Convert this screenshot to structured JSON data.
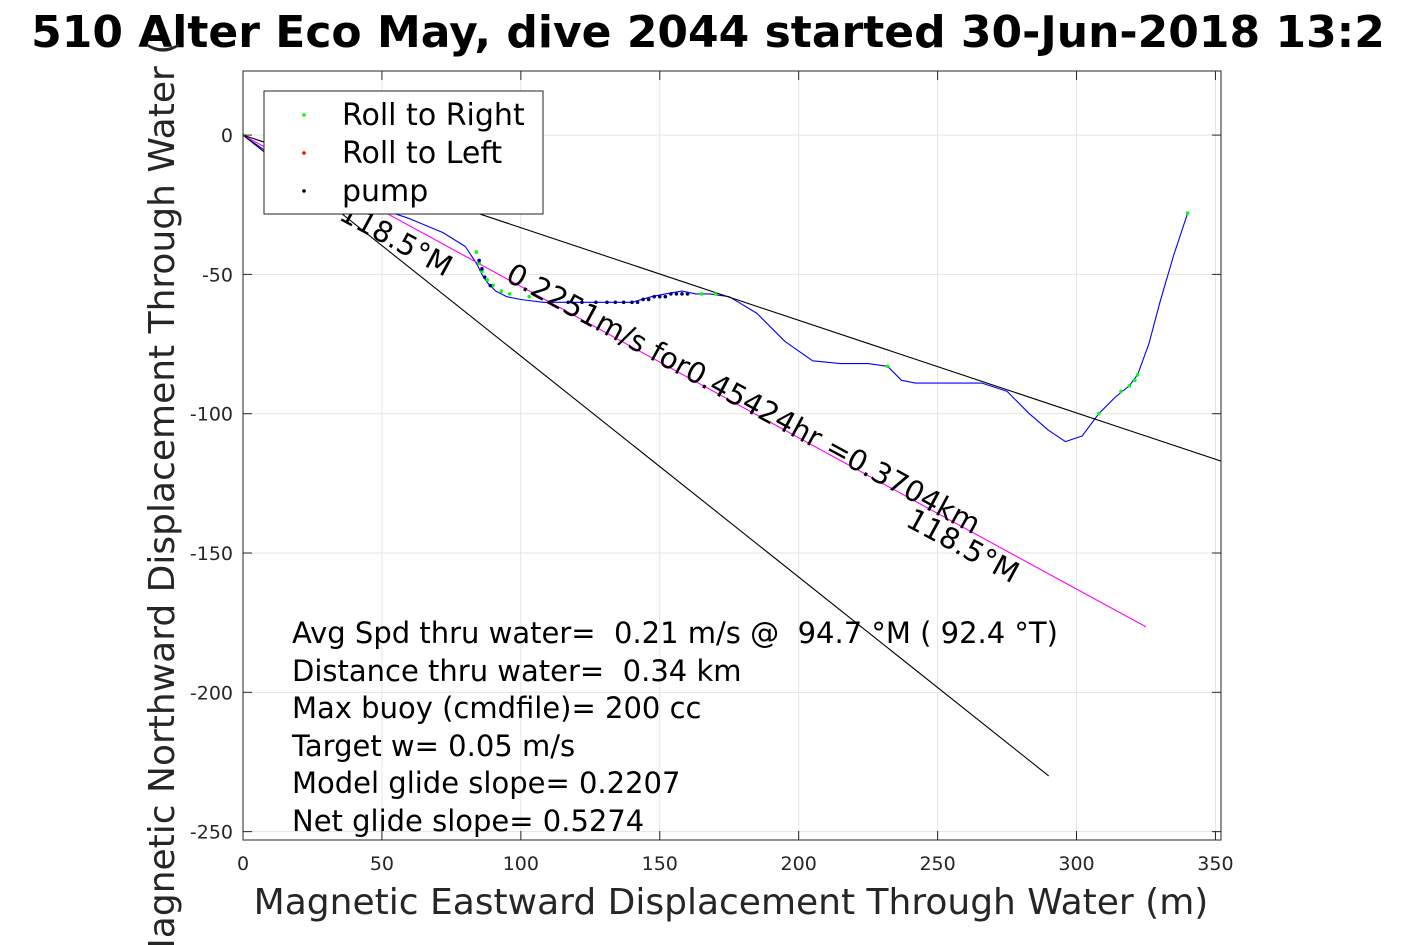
{
  "chart_data": {
    "type": "line",
    "title": "510 Alter Eco May, dive 2044 started 30-Jun-2018 13:2",
    "xlabel": "Magnetic Eastward Displacement Through Water (m)",
    "ylabel": "Magnetic Northward Displacement Through Water (",
    "xlim": [
      0,
      352
    ],
    "ylim": [
      -253,
      23
    ],
    "xticks": [
      0,
      50,
      100,
      150,
      200,
      250,
      300,
      350
    ],
    "yticks": [
      0,
      -50,
      -100,
      -150,
      -200,
      -250
    ],
    "xtick_labels": [
      "0",
      "50",
      "100",
      "150",
      "200",
      "250",
      "300",
      "350"
    ],
    "ytick_labels": [
      "0",
      "-50",
      "-100",
      "-150",
      "-200",
      "-250"
    ],
    "grid": true,
    "legend_position": "top-left",
    "legend": [
      {
        "label": "Roll to Right",
        "color": "#00ff00"
      },
      {
        "label": "Roll to Left",
        "color": "#ff0000"
      },
      {
        "label": "pump",
        "color": "#000000"
      }
    ],
    "series": [
      {
        "name": "track",
        "color": "#0000ff",
        "x": [
          0,
          10,
          20,
          30,
          45,
          60,
          72,
          80,
          84,
          86,
          88,
          91,
          95,
          100,
          108,
          117,
          125,
          132,
          140,
          147,
          152,
          158,
          163,
          168,
          175,
          185,
          195,
          205,
          215,
          225,
          232,
          237,
          242,
          250,
          258,
          266,
          275,
          283,
          290,
          296,
          302,
          308,
          314,
          319,
          322,
          326,
          330,
          335,
          340
        ],
        "y": [
          0,
          -7,
          -13,
          -19,
          -25,
          -30,
          -35,
          -40,
          -46,
          -50,
          -53,
          -56,
          -58,
          -59,
          -60,
          -60,
          -60,
          -60,
          -60,
          -58,
          -57,
          -56,
          -57,
          -57,
          -58,
          -64,
          -74,
          -81,
          -82,
          -82,
          -83,
          -88,
          -89,
          -89,
          -89,
          -89,
          -92,
          -100,
          -106,
          -110,
          -108,
          -100,
          -94,
          -90,
          -86,
          -75,
          -60,
          -43,
          -28
        ]
      },
      {
        "name": "course line",
        "color": "#ff00ff",
        "x": [
          0,
          325
        ],
        "y": [
          0,
          -176.5
        ]
      },
      {
        "name": "envelope upper",
        "color": "#000000",
        "x": [
          0,
          352
        ],
        "y": [
          0,
          -117
        ]
      },
      {
        "name": "envelope lower",
        "color": "#000000",
        "x": [
          0,
          290
        ],
        "y": [
          0,
          -230
        ]
      }
    ],
    "markers": {
      "roll_right": {
        "color": "#00ff00",
        "x": [
          0,
          84,
          85,
          86,
          88,
          90,
          93,
          96,
          103,
          160,
          165,
          170,
          232,
          308,
          316,
          319,
          321,
          322,
          340
        ],
        "y": [
          0,
          -42,
          -46,
          -49,
          -52,
          -54,
          -56,
          -57,
          -58,
          -57,
          -57,
          -57,
          -83,
          -100,
          -92,
          -90,
          -88,
          -86,
          -28
        ]
      },
      "pump": {
        "color": "#000080",
        "x": [
          85,
          86,
          87,
          89,
          117,
          122,
          127,
          131,
          134,
          137,
          140,
          142,
          144,
          146,
          148,
          150,
          152,
          154,
          156,
          158,
          160
        ],
        "y": [
          -45,
          -48,
          -51,
          -54,
          -60,
          -60,
          -60,
          -60,
          -60,
          -60,
          -60,
          -60,
          -59,
          -59,
          -58,
          -58,
          -58,
          -57,
          -57,
          -57,
          -57
        ]
      }
    },
    "annotations": [
      {
        "text": "0.2251m/s for0.45424hr =0.3704km",
        "x": 94,
        "y": -52,
        "rotation": 28.5
      },
      {
        "text": "118.5°M",
        "x": 34,
        "y": -30,
        "rotation": 28.5
      },
      {
        "text": "118.5°M",
        "x": 238,
        "y": -140,
        "rotation": 28.5
      }
    ],
    "stats": [
      "Avg Spd thru water=  0.21 m/s @  94.7 °M ( 92.4 °T)",
      "Distance thru water=  0.34 km",
      "Max buoy (cmdfile)= 200 cc",
      "Target w= 0.05 m/s",
      "Model glide slope= 0.2207",
      "Net glide slope= 0.5274"
    ]
  }
}
